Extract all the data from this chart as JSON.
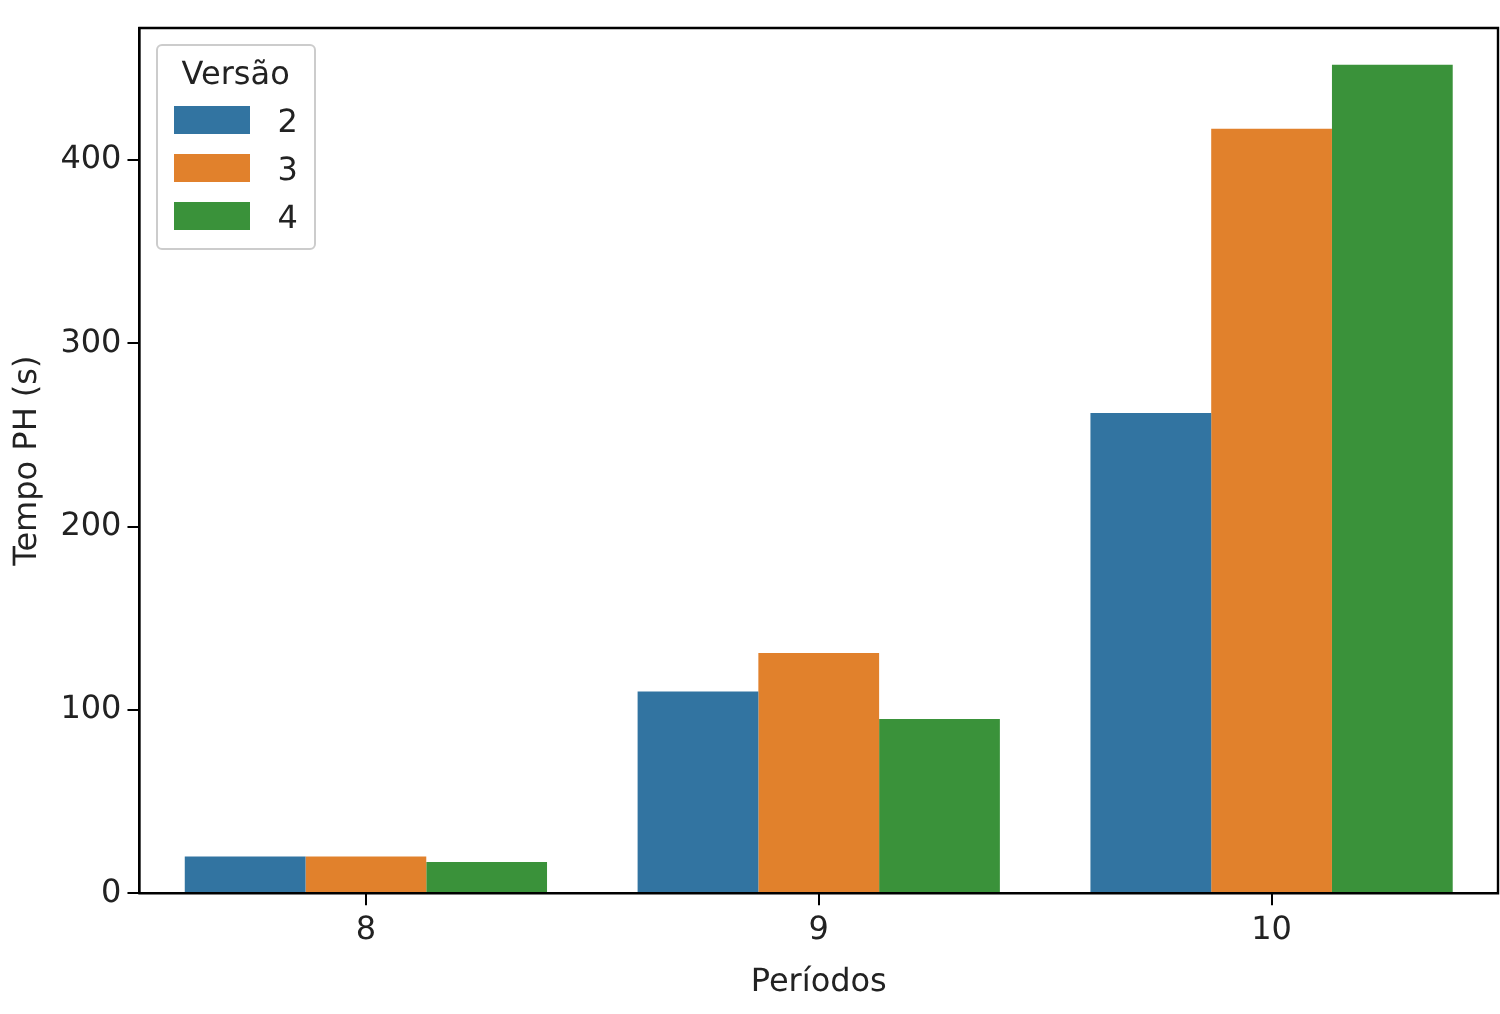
{
  "chart_data": {
    "type": "bar",
    "xlabel": "Períodos",
    "ylabel": "Tempo PH (s)",
    "legend_title": "Versão",
    "legend": "top left",
    "grid": false,
    "categories": [
      "8",
      "9",
      "10"
    ],
    "series": [
      {
        "name": "2",
        "color": "#3274a1",
        "values": [
          20,
          110,
          262
        ]
      },
      {
        "name": "3",
        "color": "#e1812c",
        "values": [
          20,
          131,
          417
        ]
      },
      {
        "name": "4",
        "color": "#3a923a",
        "values": [
          17,
          95,
          452
        ]
      }
    ],
    "ylim": [
      0,
      472
    ],
    "yticks": [
      0,
      100,
      200,
      300,
      400
    ]
  }
}
